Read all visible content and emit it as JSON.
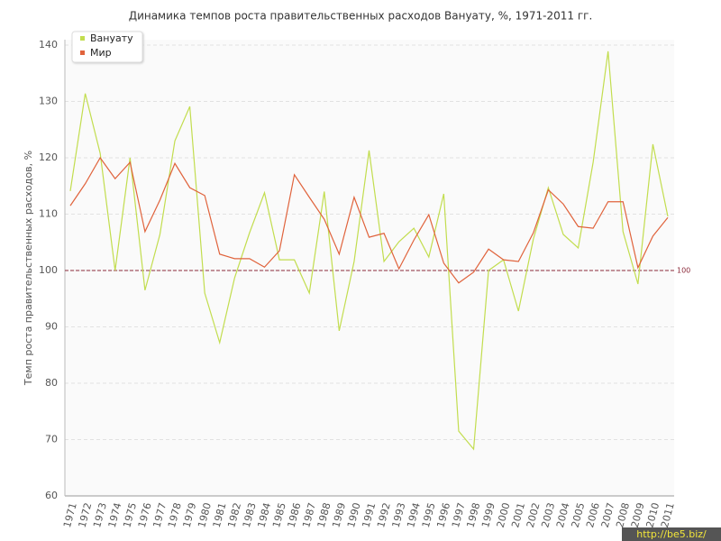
{
  "chart_data": {
    "type": "line",
    "title": "Динамика темпов роста правительственных расходов Вануату, %, 1971-2011 гг.",
    "y_label": "Темп роста правительственных расходов, %",
    "categories": [
      "1971",
      "1972",
      "1973",
      "1974",
      "1975",
      "1976",
      "1977",
      "1978",
      "1979",
      "1980",
      "1981",
      "1982",
      "1983",
      "1984",
      "1985",
      "1986",
      "1987",
      "1988",
      "1989",
      "1990",
      "1991",
      "1992",
      "1993",
      "1994",
      "1995",
      "1996",
      "1997",
      "1998",
      "1999",
      "2000",
      "2001",
      "2002",
      "2003",
      "2004",
      "2005",
      "2006",
      "2007",
      "2008",
      "2009",
      "2010",
      "2011"
    ],
    "series": [
      {
        "name": "Вануату",
        "color": "#c2dd4e",
        "values": [
          114.1,
          131.4,
          120.8,
          100,
          120,
          96.5,
          106.4,
          123,
          129.1,
          96,
          87.2,
          98.7,
          106.7,
          113.8,
          101.9,
          101.9,
          96,
          114,
          89.3,
          101.6,
          121.3,
          101.6,
          105.1,
          107.5,
          102.4,
          113.6,
          71.5,
          68.3,
          100,
          101.9,
          92.8,
          105.6,
          114.7,
          106.4,
          104,
          119.2,
          138.9,
          106.9,
          97.6,
          122.4,
          109.6
        ]
      },
      {
        "name": "Мир",
        "color": "#e0633c",
        "values": [
          111.5,
          115.4,
          120,
          116.3,
          119.2,
          106.9,
          112.5,
          119,
          114.7,
          113.3,
          102.9,
          102.1,
          102.1,
          100.6,
          103.5,
          117,
          113,
          109.1,
          102.9,
          113,
          105.9,
          106.6,
          100.3,
          105.4,
          109.9,
          101.3,
          97.8,
          99.7,
          103.8,
          101.9,
          101.6,
          106.7,
          114.3,
          111.8,
          107.8,
          107.5,
          112.2,
          112.2,
          100.5,
          106.1,
          109.4
        ]
      }
    ],
    "ylim": [
      60,
      140
    ],
    "yticks": [
      60,
      70,
      80,
      90,
      100,
      110,
      120,
      130,
      140
    ],
    "grid": true,
    "reference_line": 100,
    "reference_color": "#8b2a3a",
    "legend": "top-left",
    "watermark": "http://be5.biz/"
  }
}
